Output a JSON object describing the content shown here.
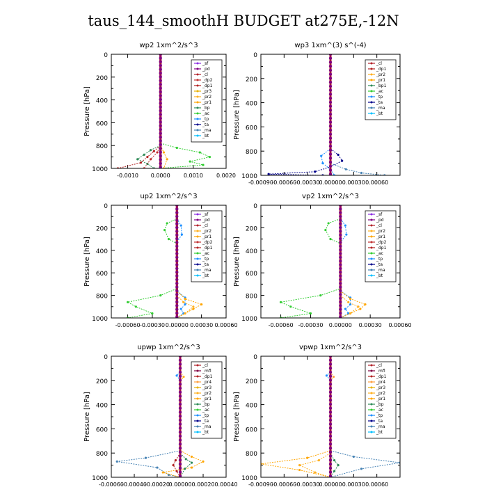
{
  "figure_title": "taus_144_smoothH  BUDGET at275E,-12N",
  "colors": {
    "sf": "#8a2be2",
    "pd": "#800080",
    "cl": "#b2222a",
    "dp1": "#b22222",
    "dp2": "#c03030",
    "dp4": "#b03040",
    "mfl": "#800040",
    "pr1": "#ffa500",
    "pr2": "#ffb020",
    "pr3": "#e8b000",
    "pr4": "#ffa040",
    "bp": "#2e8b57",
    "ac": "#32cd32",
    "tp": "#1e90ff",
    "ta": "#00008b",
    "ma": "#4682b4",
    "bt": "#00bfff"
  },
  "chart_data": [
    {
      "type": "line",
      "title": "wp2   1xm^2/s^3",
      "ylabel": "Pressure [hPa]",
      "xlim": [
        -0.0015,
        0.002
      ],
      "ylim": [
        1000,
        0
      ],
      "xticks": [
        "-0.0010",
        "0.0000",
        "0.0010",
        "0.0020"
      ],
      "xtick_values": [
        -0.001,
        0,
        0.001,
        0.002
      ],
      "yticks": [
        "0",
        "200",
        "400",
        "600",
        "800",
        "1000"
      ],
      "legend": [
        "_sf",
        "_pd",
        "_cl",
        "_dp2",
        "_dp1",
        "_pr3",
        "_pr2",
        "_pr1",
        "_bp",
        "_ac",
        "_tp",
        "_ta",
        "_ma",
        "_bt"
      ],
      "legend_keys": [
        "sf",
        "pd",
        "cl",
        "dp2",
        "dp1",
        "pr3",
        "pr2",
        "pr1",
        "bp",
        "ac",
        "tp",
        "ta",
        "ma",
        "bt"
      ],
      "legend_position": "top-right",
      "series": [
        {
          "key": "ac",
          "pressure": [
            780,
            820,
            860,
            900,
            940,
            970,
            1000
          ],
          "values": [
            0,
            0.0005,
            0.0012,
            0.0015,
            0.0009,
            0.0013,
            0
          ]
        },
        {
          "key": "bp",
          "pressure": [
            800,
            840,
            880,
            920,
            960,
            1000
          ],
          "values": [
            0,
            -0.0003,
            -0.0005,
            -0.0007,
            -0.0004,
            -0.0002
          ]
        },
        {
          "key": "dp1",
          "pressure": [
            800,
            850,
            900,
            950,
            1000
          ],
          "values": [
            0,
            -0.0002,
            -0.0004,
            -0.0006,
            -0.0013
          ]
        },
        {
          "key": "dp2",
          "pressure": [
            800,
            860,
            920,
            1000
          ],
          "values": [
            0,
            -0.0001,
            -0.0003,
            -0.0005
          ]
        },
        {
          "key": "pr1",
          "pressure": [
            800,
            860,
            920,
            1000
          ],
          "values": [
            0,
            0.0001,
            0.0002,
            0.0001
          ]
        },
        {
          "key": "pd",
          "pressure": [
            0,
            1000
          ],
          "values": [
            0,
            0
          ]
        },
        {
          "key": "sf",
          "pressure": [
            0,
            1000
          ],
          "values": [
            0,
            0
          ]
        }
      ]
    },
    {
      "type": "line",
      "title": "wp3   1xm^(3) s^(-4)",
      "ylabel": "Pressure [hPa]",
      "xlim": [
        -0.0009,
        0.0009
      ],
      "ylim": [
        1000,
        0
      ],
      "xticks": [
        "-0.00090",
        "-0.00060",
        "-0.00030",
        "0.00000",
        "0.00030",
        "0.00060"
      ],
      "xtick_values": [
        -0.0009,
        -0.0006,
        -0.0003,
        0,
        0.0003,
        0.0006
      ],
      "yticks": [
        "0",
        "200",
        "400",
        "600",
        "800",
        "1000"
      ],
      "legend": [
        "_cl",
        "_dp1",
        "_pr2",
        "_pr1",
        "_bp1",
        "_ac",
        "_tp",
        "_ta",
        "_ma",
        "_bt"
      ],
      "legend_keys": [
        "cl",
        "dp1",
        "pr2",
        "pr1",
        "bp",
        "ac",
        "tp",
        "ta",
        "ma",
        "bt"
      ],
      "legend_position": "top-right",
      "series": [
        {
          "key": "ta",
          "pressure": [
            780,
            830,
            880,
            930,
            970,
            990,
            1000
          ],
          "values": [
            0,
            0.0001,
            0.00015,
            0,
            -0.0002,
            -0.0008,
            -0.0001
          ]
        },
        {
          "key": "tp",
          "pressure": [
            780,
            840,
            900,
            950,
            1000
          ],
          "values": [
            0,
            -0.00012,
            -0.0001,
            0,
            5e-05
          ]
        },
        {
          "key": "ma",
          "pressure": [
            900,
            950,
            980,
            1000
          ],
          "values": [
            0,
            0.0002,
            0.0004,
            0.0007
          ]
        },
        {
          "key": "cl",
          "pressure": [
            0,
            1000
          ],
          "values": [
            0,
            0
          ]
        },
        {
          "key": "dp1",
          "pressure": [
            0,
            1000
          ],
          "values": [
            0,
            0
          ]
        }
      ]
    },
    {
      "type": "line",
      "title": "up2   1xm^2/s^3",
      "ylabel": "Pressure [hPa]",
      "xlim": [
        -0.0008,
        0.0006
      ],
      "ylim": [
        1000,
        0
      ],
      "xticks": [
        "-0.00060",
        "-0.00030",
        "0.00000",
        "0.00030",
        "0.00060"
      ],
      "xtick_values": [
        -0.0006,
        -0.0003,
        0,
        0.0003,
        0.0006
      ],
      "yticks": [
        "0",
        "200",
        "400",
        "600",
        "800",
        "1000"
      ],
      "legend": [
        "_sf",
        "_pd",
        "_cl",
        "_pr2",
        "_pr1",
        "_dp2",
        "_dp1",
        "_ac",
        "_tp",
        "_ta",
        "_ma",
        "_bt"
      ],
      "legend_keys": [
        "sf",
        "pd",
        "cl",
        "pr2",
        "pr1",
        "dp2",
        "dp1",
        "ac",
        "tp",
        "ta",
        "ma",
        "bt"
      ],
      "legend_position": "top-right",
      "series": [
        {
          "key": "ac",
          "pressure": [
            120,
            160,
            220,
            300,
            340,
            740,
            800,
            860,
            900,
            960,
            1000
          ],
          "values": [
            0,
            -0.00012,
            -0.00015,
            -0.0001,
            0,
            0,
            -0.0002,
            -0.0006,
            -0.0005,
            -0.0003,
            -0.0006
          ]
        },
        {
          "key": "tp",
          "pressure": [
            120,
            180,
            260,
            330,
            760,
            820,
            880,
            920,
            960,
            1000
          ],
          "values": [
            0,
            5e-05,
            6e-05,
            0,
            0,
            0.0001,
            0.0001,
            5e-05,
            8e-05,
            0
          ]
        },
        {
          "key": "pr1",
          "pressure": [
            760,
            830,
            880,
            920,
            960,
            1000
          ],
          "values": [
            0,
            0.0001,
            0.0003,
            0.0002,
            0.0001,
            0
          ]
        },
        {
          "key": "pr2",
          "pressure": [
            800,
            860,
            900,
            960,
            1000
          ],
          "values": [
            0,
            8e-05,
            0.0002,
            0.0001,
            0
          ]
        },
        {
          "key": "dp1",
          "pressure": [
            0,
            1000
          ],
          "values": [
            0,
            0
          ]
        }
      ]
    },
    {
      "type": "line",
      "title": "vp2   1xm^2/s^3",
      "ylabel": "Pressure [hPa]",
      "xlim": [
        -0.0008,
        0.0006
      ],
      "ylim": [
        1000,
        0
      ],
      "xticks": [
        "-0.00060",
        "-0.00030",
        "0.00000",
        "0.00030",
        "0.00060"
      ],
      "xtick_values": [
        -0.0006,
        -0.0003,
        0,
        0.0003,
        0.0006
      ],
      "yticks": [
        "0",
        "200",
        "400",
        "600",
        "800",
        "1000"
      ],
      "legend": [
        "_sf",
        "_pd",
        "_cl",
        "_pr2",
        "_pr1",
        "_dp2",
        "_dp1",
        "_ac",
        "_tp",
        "_ta",
        "_ma",
        "_bt"
      ],
      "legend_keys": [
        "sf",
        "pd",
        "cl",
        "pr2",
        "pr1",
        "dp2",
        "dp1",
        "ac",
        "tp",
        "ta",
        "ma",
        "bt"
      ],
      "legend_position": "top-right",
      "series": [
        {
          "key": "ac",
          "pressure": [
            120,
            160,
            220,
            300,
            340,
            740,
            800,
            860,
            900,
            960,
            1000
          ],
          "values": [
            0,
            -0.00012,
            -0.00015,
            -0.0001,
            0,
            0,
            -0.0002,
            -0.0006,
            -0.0005,
            -0.0003,
            -0.0006
          ]
        },
        {
          "key": "tp",
          "pressure": [
            120,
            180,
            260,
            330,
            760,
            820,
            880,
            920,
            960,
            1000
          ],
          "values": [
            0,
            5e-05,
            6e-05,
            0,
            0,
            0.0001,
            0.0001,
            5e-05,
            8e-05,
            0
          ]
        },
        {
          "key": "pr1",
          "pressure": [
            760,
            830,
            880,
            920,
            960,
            1000
          ],
          "values": [
            0,
            0.0001,
            0.00025,
            0.0002,
            0.0001,
            0
          ]
        },
        {
          "key": "pr2",
          "pressure": [
            800,
            860,
            900,
            960,
            1000
          ],
          "values": [
            0,
            8e-05,
            0.00018,
            0.0001,
            0
          ]
        },
        {
          "key": "dp1",
          "pressure": [
            0,
            1000
          ],
          "values": [
            0,
            0
          ]
        }
      ]
    },
    {
      "type": "line",
      "title": "upwp   1xm^2/s^3",
      "ylabel": "Pressure [hPa]",
      "xlim": [
        -0.0006,
        0.0004
      ],
      "ylim": [
        1000,
        0
      ],
      "xticks": [
        "-0.00060",
        "-0.00040",
        "-0.00020",
        "0.00000",
        "0.00020",
        "0.00040"
      ],
      "xtick_values": [
        -0.0006,
        -0.0004,
        -0.0002,
        0,
        0.0002,
        0.0004
      ],
      "yticks": [
        "0",
        "200",
        "400",
        "600",
        "800",
        "1000"
      ],
      "legend": [
        "_cl",
        "_mfl",
        "_dp1",
        "_pr4",
        "_pr3",
        "_pr2",
        "_pr1",
        "_bp",
        "_ac",
        "_tp",
        "_ta",
        "_ma",
        "_bt"
      ],
      "legend_keys": [
        "cl",
        "mfl",
        "dp1",
        "pr4",
        "pr3",
        "pr2",
        "pr1",
        "bp",
        "ac",
        "tp",
        "ta",
        "ma",
        "bt"
      ],
      "legend_position": "top-right",
      "series": [
        {
          "key": "ma",
          "pressure": [
            780,
            840,
            870,
            920,
            980,
            1000
          ],
          "values": [
            0,
            -0.0003,
            -0.00055,
            -0.0002,
            -0.0001,
            0
          ]
        },
        {
          "key": "pr1",
          "pressure": [
            780,
            830,
            870,
            920,
            960,
            1000
          ],
          "values": [
            0,
            0.0001,
            0.0002,
            0.0001,
            -0.00015,
            0
          ]
        },
        {
          "key": "bp",
          "pressure": [
            800,
            850,
            880,
            930,
            1000
          ],
          "values": [
            0,
            5e-05,
            0.0001,
            4e-05,
            0
          ]
        },
        {
          "key": "dp1",
          "pressure": [
            800,
            860,
            900,
            950,
            1000
          ],
          "values": [
            0,
            -4e-05,
            -6e-05,
            -3e-05,
            0
          ]
        },
        {
          "key": "tp",
          "pressure": [
            130,
            160,
            200
          ],
          "values": [
            0,
            -3e-05,
            0
          ]
        },
        {
          "key": "pr2",
          "pressure": [
            130,
            170,
            210
          ],
          "values": [
            0,
            3e-05,
            0
          ]
        },
        {
          "key": "cl",
          "pressure": [
            0,
            1000
          ],
          "values": [
            0,
            0
          ]
        },
        {
          "key": "mfl",
          "pressure": [
            0,
            1000
          ],
          "values": [
            0,
            0
          ]
        }
      ]
    },
    {
      "type": "line",
      "title": "vpwp   1xm^2/s^3",
      "ylabel": "Pressure [hPa]",
      "xlim": [
        -0.0009,
        0.0009
      ],
      "ylim": [
        1000,
        0
      ],
      "xticks": [
        "-0.00090",
        "-0.00060",
        "-0.00030",
        "0.00000",
        "0.00030",
        "0.00060"
      ],
      "xtick_values": [
        -0.0009,
        -0.0006,
        -0.0003,
        0,
        0.0003,
        0.0006
      ],
      "yticks": [
        "0",
        "200",
        "400",
        "600",
        "800",
        "1000"
      ],
      "legend": [
        "_cl",
        "_mfl",
        "_dp1",
        "_pr4",
        "_pr3",
        "_pr2",
        "_pr1",
        "_bp",
        "_ac",
        "_tp",
        "_ta",
        "_ma",
        "_bt"
      ],
      "legend_keys": [
        "cl",
        "mfl",
        "dp1",
        "pr4",
        "pr3",
        "pr2",
        "pr1",
        "bp",
        "ac",
        "tp",
        "ta",
        "ma",
        "bt"
      ],
      "legend_position": "top-right",
      "series": [
        {
          "key": "ma",
          "pressure": [
            780,
            830,
            880,
            930,
            1000
          ],
          "values": [
            0,
            0.0003,
            0.0009,
            0.0004,
            0
          ]
        },
        {
          "key": "pr1",
          "pressure": [
            780,
            840,
            890,
            940,
            1000
          ],
          "values": [
            0,
            -0.0003,
            -0.0009,
            -0.0004,
            0
          ]
        },
        {
          "key": "pr2",
          "pressure": [
            800,
            860,
            900,
            960,
            1000
          ],
          "values": [
            0,
            -0.00015,
            -0.0004,
            -0.0002,
            0
          ]
        },
        {
          "key": "bp",
          "pressure": [
            800,
            860,
            900,
            950,
            1000
          ],
          "values": [
            0,
            5e-05,
            0.0001,
            5e-05,
            0
          ]
        },
        {
          "key": "tp",
          "pressure": [
            130,
            160,
            200
          ],
          "values": [
            0,
            -5e-05,
            0
          ]
        },
        {
          "key": "pr4",
          "pressure": [
            130,
            170,
            220
          ],
          "values": [
            0,
            4e-05,
            0
          ]
        },
        {
          "key": "cl",
          "pressure": [
            0,
            1000
          ],
          "values": [
            0,
            0
          ]
        },
        {
          "key": "mfl",
          "pressure": [
            0,
            1000
          ],
          "values": [
            0,
            0
          ]
        }
      ]
    }
  ]
}
